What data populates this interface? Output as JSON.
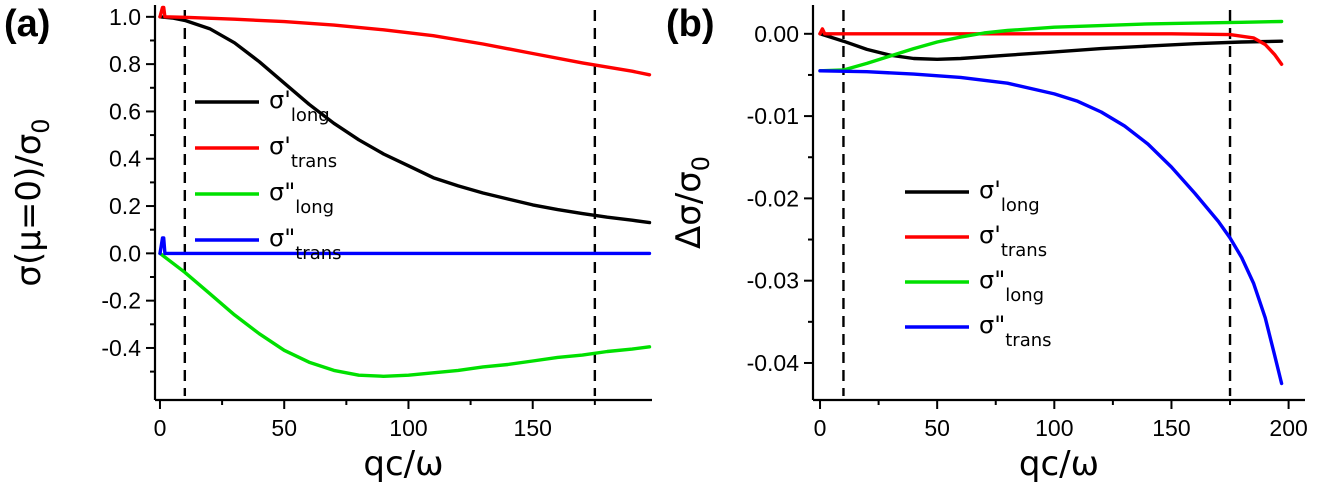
{
  "chart_data": [
    {
      "type": "line",
      "panel_label": "(a)",
      "xlabel": "qc/ω",
      "ylabel_main": "σ(μ=0)/σ",
      "ylabel_sub": "0",
      "xlim": [
        -2,
        198
      ],
      "ylim": [
        -0.62,
        1.05
      ],
      "xticks": [
        0,
        50,
        100,
        150
      ],
      "xtick_labels": [
        "0",
        "50",
        "100",
        "150"
      ],
      "yticks": [
        1.0,
        0.8,
        0.6,
        0.4,
        0.2,
        0.0,
        -0.2,
        -0.4
      ],
      "ytick_labels": [
        "1.0",
        "0.8",
        "0.6",
        "0.4",
        "0.2",
        "0.0",
        "-0.2",
        "-0.4"
      ],
      "vlines": [
        10,
        175
      ],
      "legend_position": "center-left",
      "series": [
        {
          "name": "σ'",
          "sub": "long",
          "color": "#000000",
          "x": [
            0,
            5,
            10,
            20,
            30,
            40,
            50,
            60,
            70,
            80,
            90,
            100,
            110,
            120,
            130,
            140,
            150,
            160,
            170,
            180,
            190,
            197
          ],
          "y": [
            1.0,
            0.995,
            0.985,
            0.95,
            0.89,
            0.81,
            0.72,
            0.63,
            0.55,
            0.48,
            0.42,
            0.37,
            0.32,
            0.285,
            0.255,
            0.23,
            0.205,
            0.185,
            0.168,
            0.153,
            0.14,
            0.13
          ]
        },
        {
          "name": "σ'",
          "sub": "trans",
          "color": "#ff0000",
          "x": [
            0,
            1,
            1.5,
            2,
            10,
            30,
            50,
            70,
            90,
            110,
            130,
            150,
            170,
            190,
            197
          ],
          "y": [
            1.0,
            1.04,
            1.04,
            1.0,
            0.998,
            0.99,
            0.98,
            0.965,
            0.945,
            0.92,
            0.885,
            0.845,
            0.805,
            0.77,
            0.755
          ]
        },
        {
          "name": "σ\"",
          "sub": "long",
          "color": "#00e000",
          "x": [
            0,
            10,
            20,
            30,
            40,
            50,
            60,
            70,
            80,
            90,
            100,
            110,
            120,
            130,
            140,
            150,
            160,
            170,
            180,
            190,
            197
          ],
          "y": [
            0.0,
            -0.08,
            -0.17,
            -0.26,
            -0.34,
            -0.41,
            -0.46,
            -0.495,
            -0.515,
            -0.52,
            -0.515,
            -0.505,
            -0.495,
            -0.48,
            -0.47,
            -0.455,
            -0.44,
            -0.43,
            -0.415,
            -0.405,
            -0.395
          ]
        },
        {
          "name": "σ\"",
          "sub": "trans",
          "color": "#0000ff",
          "x": [
            0,
            1,
            1.5,
            2,
            50,
            100,
            150,
            197
          ],
          "y": [
            0.0,
            0.065,
            0.065,
            0.0,
            0.0,
            0.0,
            0.0,
            0.0
          ]
        }
      ]
    },
    {
      "type": "line",
      "panel_label": "(b)",
      "xlabel": "qc/ω",
      "ylabel_main": "Δσ/σ",
      "ylabel_sub": "0",
      "xlim": [
        -3,
        207
      ],
      "ylim": [
        -0.0445,
        0.0035
      ],
      "xticks": [
        0,
        50,
        100,
        150,
        200
      ],
      "xtick_labels": [
        "0",
        "50",
        "100",
        "150",
        "200"
      ],
      "yticks": [
        0.0,
        -0.01,
        -0.02,
        -0.03,
        -0.04
      ],
      "ytick_labels": [
        "0.00",
        "-0.01",
        "-0.02",
        "-0.03",
        "-0.04"
      ],
      "vlines": [
        10,
        175
      ],
      "legend_position": "center-left",
      "series": [
        {
          "name": "σ'",
          "sub": "long",
          "color": "#000000",
          "x": [
            0,
            10,
            20,
            30,
            40,
            50,
            60,
            80,
            100,
            120,
            140,
            160,
            180,
            197
          ],
          "y": [
            0.0,
            -0.0009,
            -0.0019,
            -0.0026,
            -0.003,
            -0.0031,
            -0.003,
            -0.0026,
            -0.0022,
            -0.0018,
            -0.0015,
            -0.0012,
            -0.001,
            -0.0009
          ]
        },
        {
          "name": "σ'",
          "sub": "trans",
          "color": "#ff0000",
          "x": [
            0,
            1,
            2,
            50,
            100,
            150,
            175,
            185,
            190,
            194,
            197
          ],
          "y": [
            0.0,
            0.0006,
            0.0,
            0.0,
            0.0,
            0.0,
            -0.0001,
            -0.0005,
            -0.0013,
            -0.0025,
            -0.0037
          ]
        },
        {
          "name": "σ\"",
          "sub": "long",
          "color": "#00e000",
          "x": [
            0,
            10,
            20,
            30,
            40,
            50,
            60,
            70,
            80,
            100,
            120,
            140,
            160,
            180,
            197
          ],
          "y": [
            -0.0045,
            -0.0044,
            -0.0036,
            -0.0027,
            -0.0018,
            -0.001,
            -0.0004,
            0.0001,
            0.0004,
            0.0008,
            0.001,
            0.0012,
            0.0013,
            0.0014,
            0.0015
          ]
        },
        {
          "name": "σ\"",
          "sub": "trans",
          "color": "#0000ff",
          "x": [
            0,
            20,
            40,
            60,
            80,
            100,
            110,
            120,
            130,
            140,
            150,
            160,
            170,
            175,
            180,
            185,
            190,
            194,
            197
          ],
          "y": [
            -0.0045,
            -0.0046,
            -0.0049,
            -0.0053,
            -0.006,
            -0.0073,
            -0.0082,
            -0.0095,
            -0.0112,
            -0.0134,
            -0.0162,
            -0.0194,
            -0.0228,
            -0.0248,
            -0.0272,
            -0.0303,
            -0.0345,
            -0.039,
            -0.0425
          ]
        }
      ]
    }
  ]
}
